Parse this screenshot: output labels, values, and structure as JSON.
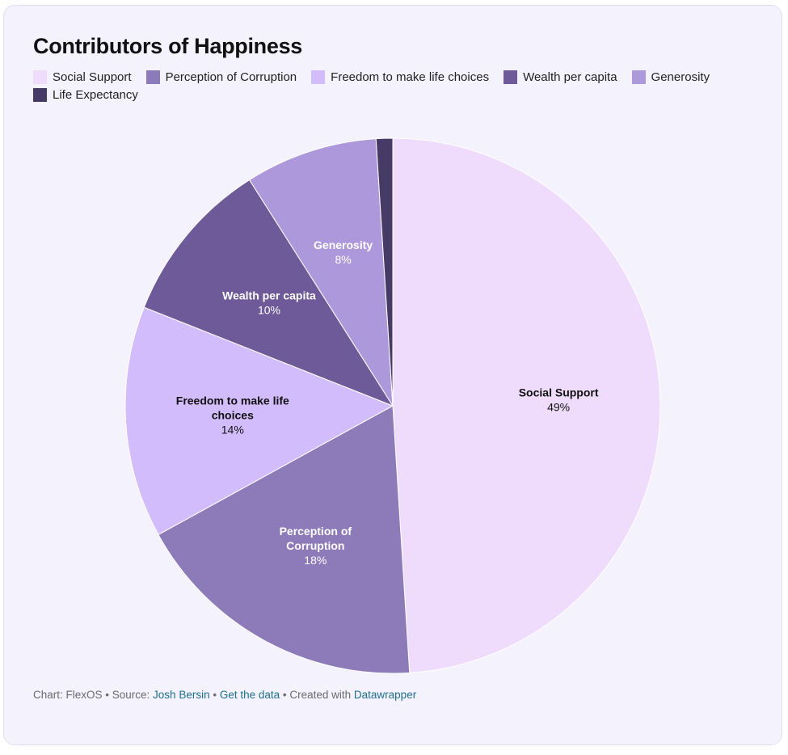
{
  "chart_data": {
    "type": "pie",
    "title": "Contributors of Happiness",
    "slices": [
      {
        "name": "Social Support",
        "label_lines": [
          "Social Support"
        ],
        "value": 49,
        "pct_label": "49%",
        "color": "#efdcfc",
        "text_color": "#111111"
      },
      {
        "name": "Perception of Corruption",
        "label_lines": [
          "Perception of",
          "Corruption"
        ],
        "value": 18,
        "pct_label": "18%",
        "color": "#8d7ab9",
        "text_color": "#ffffff"
      },
      {
        "name": "Freedom to make life choices",
        "label_lines": [
          "Freedom to make life",
          "choices"
        ],
        "value": 14,
        "pct_label": "14%",
        "color": "#d2bcfc",
        "text_color": "#111111"
      },
      {
        "name": "Wealth per capita",
        "label_lines": [
          "Wealth per capita"
        ],
        "value": 10,
        "pct_label": "10%",
        "color": "#6e5a98",
        "text_color": "#ffffff"
      },
      {
        "name": "Generosity",
        "label_lines": [
          "Generosity"
        ],
        "value": 8,
        "pct_label": "8%",
        "color": "#ae98dc",
        "text_color": "#ffffff"
      },
      {
        "name": "Life Expectancy",
        "label_lines": [],
        "value": 1,
        "pct_label": "",
        "color": "#463a66",
        "text_color": "#ffffff"
      }
    ],
    "legend_placement": "top-left"
  },
  "footer": {
    "chart_by": "Chart: FlexOS",
    "sep1": " • Source: ",
    "source": "Josh Bersin",
    "sep2": " • ",
    "get_data": "Get the data",
    "sep3": " • Created with ",
    "created_with": "Datawrapper"
  }
}
